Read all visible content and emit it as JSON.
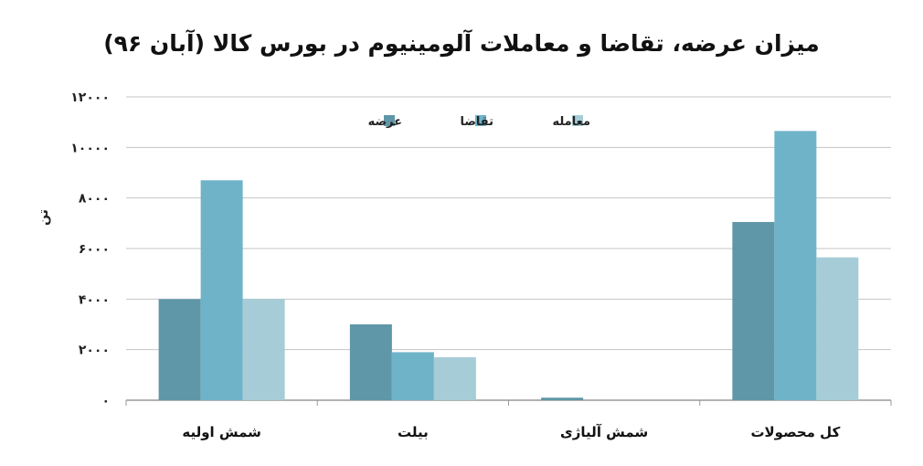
{
  "chart_data": {
    "type": "bar",
    "title": "میزان عرضه، تقاضا و معاملات آلومینیوم در بورس کالا (آبان ۹۶)",
    "ylabel": "تن",
    "xlabel": "",
    "ylim": [
      0,
      12000
    ],
    "yticks": [
      0,
      2000,
      4000,
      6000,
      8000,
      10000,
      12000
    ],
    "ytick_labels": [
      "۰",
      "۲۰۰۰",
      "۴۰۰۰",
      "۶۰۰۰",
      "۸۰۰۰",
      "۱۰۰۰۰",
      "۱۲۰۰۰"
    ],
    "grid": true,
    "legend_position": "top-center",
    "categories": [
      "شمش اولیه",
      "بیلت",
      "شمش آلیاژی",
      "کل محصولات"
    ],
    "series": [
      {
        "name": "عرضه",
        "color": "#5f97a8",
        "values": [
          4000,
          3000,
          100,
          7050
        ]
      },
      {
        "name": "تقاضا",
        "color": "#6fb3c9",
        "values": [
          8700,
          1900,
          0,
          10650
        ]
      },
      {
        "name": "معامله",
        "color": "#a6cdd7",
        "values": [
          4000,
          1700,
          0,
          5650
        ]
      }
    ]
  }
}
